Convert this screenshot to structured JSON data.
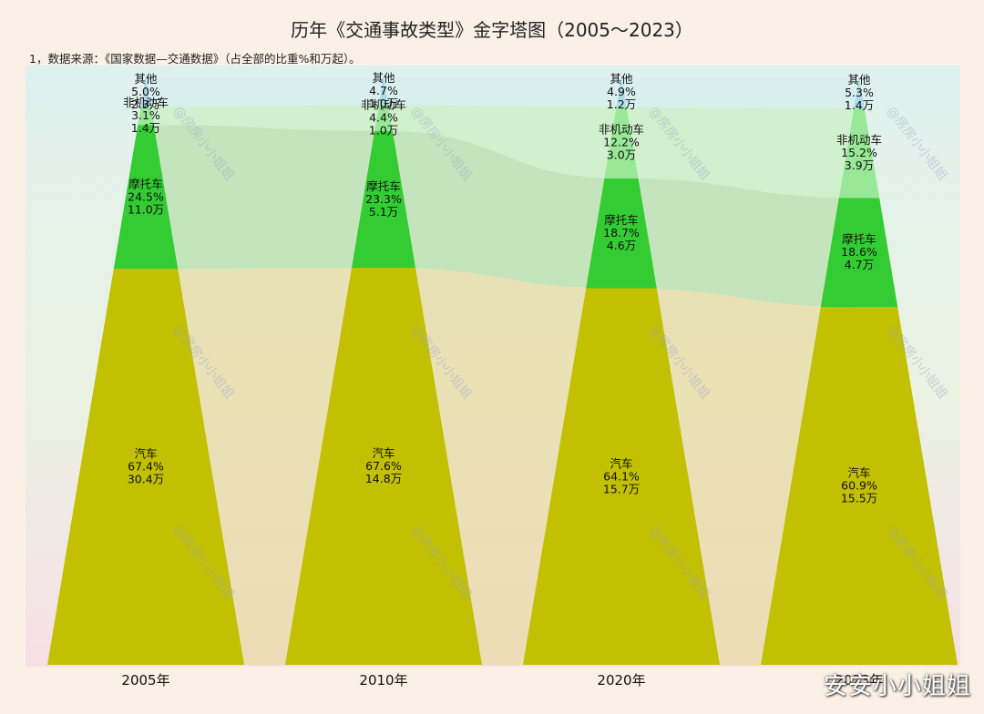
{
  "chart_data": {
    "type": "area",
    "title": "历年《交通事故类型》金字塔图（2005～2023）",
    "subtitle": "1，数据来源：《国家数据—交通数据》（占全部的比重%和万起）。",
    "categories": [
      "2005年",
      "2010年",
      "2020年",
      "2023年"
    ],
    "series": [
      {
        "name": "汽车",
        "color": "#c2c000",
        "share_pct": [
          67.4,
          67.6,
          64.1,
          60.9
        ],
        "count_label": [
          "30.4万",
          "14.8万",
          "15.7万",
          "15.5万"
        ]
      },
      {
        "name": "摩托车",
        "color": "#33cc33",
        "share_pct": [
          24.5,
          23.3,
          18.7,
          18.6
        ],
        "count_label": [
          "11.0万",
          "5.1万",
          "4.6万",
          "4.7万"
        ]
      },
      {
        "name": "非机动车",
        "color": "#98e898",
        "share_pct": [
          3.1,
          4.4,
          12.2,
          15.2
        ],
        "count_label": [
          "1.4万",
          "1.0万",
          "3.0万",
          "3.9万"
        ]
      },
      {
        "name": "其他",
        "color": "#acdce8",
        "share_pct": [
          5.0,
          4.7,
          4.9,
          5.3
        ],
        "count_label": [
          "2.3万",
          "1.0万",
          "1.2万",
          "1.4万"
        ]
      }
    ],
    "pct_labels": [
      [
        "67.4%",
        "67.6%",
        "64.1%",
        "60.9%"
      ],
      [
        "24.5%",
        "23.3%",
        "18.7%",
        "18.6%"
      ],
      [
        "3.1%",
        "4.4%",
        "12.2%",
        "15.2%"
      ],
      [
        "5.0%",
        "4.7%",
        "4.9%",
        "5.3%"
      ]
    ],
    "ylim": [
      0,
      100
    ],
    "grid": false,
    "legend": "none"
  },
  "watermark": "@房房小小姐姐",
  "corner_text": "安安小小姐姐",
  "colors": {
    "background": "#fbf0e6",
    "plot_bg": "#e4f2e9",
    "flow_car": "#e9dba5",
    "flow_moto": "#b8dfac",
    "flow_nonmotor": "#c9efc4",
    "flow_other": "#d6edf0"
  }
}
